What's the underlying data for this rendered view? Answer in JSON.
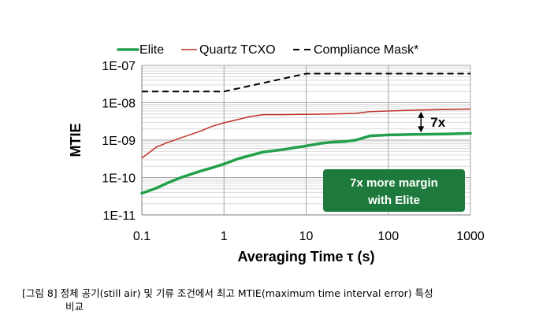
{
  "chart_data": {
    "type": "line",
    "xscale": "log",
    "yscale": "log",
    "xlabel": "Averaging Time τ (s)",
    "ylabel": "MTIE",
    "xlim": [
      0.1,
      1000
    ],
    "ylim": [
      1e-11,
      1e-07
    ],
    "x_ticks": [
      0.1,
      1,
      10,
      100,
      1000
    ],
    "x_tick_labels": [
      "0.1",
      "1",
      "10",
      "100",
      "1000"
    ],
    "y_ticks": [
      1e-07,
      1e-08,
      1e-09,
      1e-10,
      1e-11
    ],
    "y_tick_labels": [
      "1E-07",
      "1E-08",
      "1E-09",
      "1E-10",
      "1E-11"
    ],
    "grid": true,
    "legend_position": "top",
    "series": [
      {
        "name": "Elite",
        "color": "#22a04a",
        "style": "solid-thick",
        "points": [
          [
            0.1,
            3.8e-11
          ],
          [
            0.15,
            5.2e-11
          ],
          [
            0.2,
            7e-11
          ],
          [
            0.3,
            1e-10
          ],
          [
            0.5,
            1.45e-10
          ],
          [
            0.7,
            1.8e-10
          ],
          [
            1,
            2.3e-10
          ],
          [
            1.5,
            3.2e-10
          ],
          [
            2,
            3.8e-10
          ],
          [
            3,
            4.8e-10
          ],
          [
            5,
            5.5e-10
          ],
          [
            7,
            6.2e-10
          ],
          [
            10,
            7e-10
          ],
          [
            15,
            8.2e-10
          ],
          [
            20,
            8.8e-10
          ],
          [
            30,
            9.2e-10
          ],
          [
            40,
            1e-09
          ],
          [
            50,
            1.15e-09
          ],
          [
            60,
            1.3e-09
          ],
          [
            70,
            1.32e-09
          ],
          [
            100,
            1.38e-09
          ],
          [
            200,
            1.42e-09
          ],
          [
            500,
            1.45e-09
          ],
          [
            1000,
            1.52e-09
          ]
        ]
      },
      {
        "name": "Quartz TCXO",
        "color": "#c0302a",
        "style": "solid",
        "points": [
          [
            0.1,
            3.3e-10
          ],
          [
            0.15,
            6.5e-10
          ],
          [
            0.2,
            8.5e-10
          ],
          [
            0.3,
            1.15e-09
          ],
          [
            0.5,
            1.7e-09
          ],
          [
            0.7,
            2.3e-09
          ],
          [
            1,
            2.9e-09
          ],
          [
            1.5,
            3.6e-09
          ],
          [
            2,
            4.2e-09
          ],
          [
            3,
            4.8e-09
          ],
          [
            5,
            4.8e-09
          ],
          [
            10,
            4.9e-09
          ],
          [
            20,
            5e-09
          ],
          [
            40,
            5.2e-09
          ],
          [
            60,
            5.8e-09
          ],
          [
            100,
            6e-09
          ],
          [
            200,
            6.3e-09
          ],
          [
            500,
            6.6e-09
          ],
          [
            1000,
            6.8e-09
          ]
        ]
      },
      {
        "name": "Compliance Mask*",
        "color": "#000000",
        "style": "dashed",
        "points": [
          [
            0.1,
            2e-08
          ],
          [
            1,
            2e-08
          ],
          [
            10,
            6e-08
          ],
          [
            1000,
            6e-08
          ]
        ]
      }
    ],
    "annotations": [
      {
        "label": "7x",
        "x": 250,
        "y_from": 1.45e-09,
        "y_to": 6.4e-09
      },
      {
        "label": "7x more margin\nwith Elite"
      }
    ]
  },
  "callout": {
    "line1": "7x more margin",
    "line2": "with Elite",
    "color": "#1e7a3c"
  },
  "caption": {
    "line1": "[그림 8] 정체 공기(still air) 및 기류 조건에서 최고 MTIE(maximum time interval error) 특성",
    "line2": "비교"
  }
}
